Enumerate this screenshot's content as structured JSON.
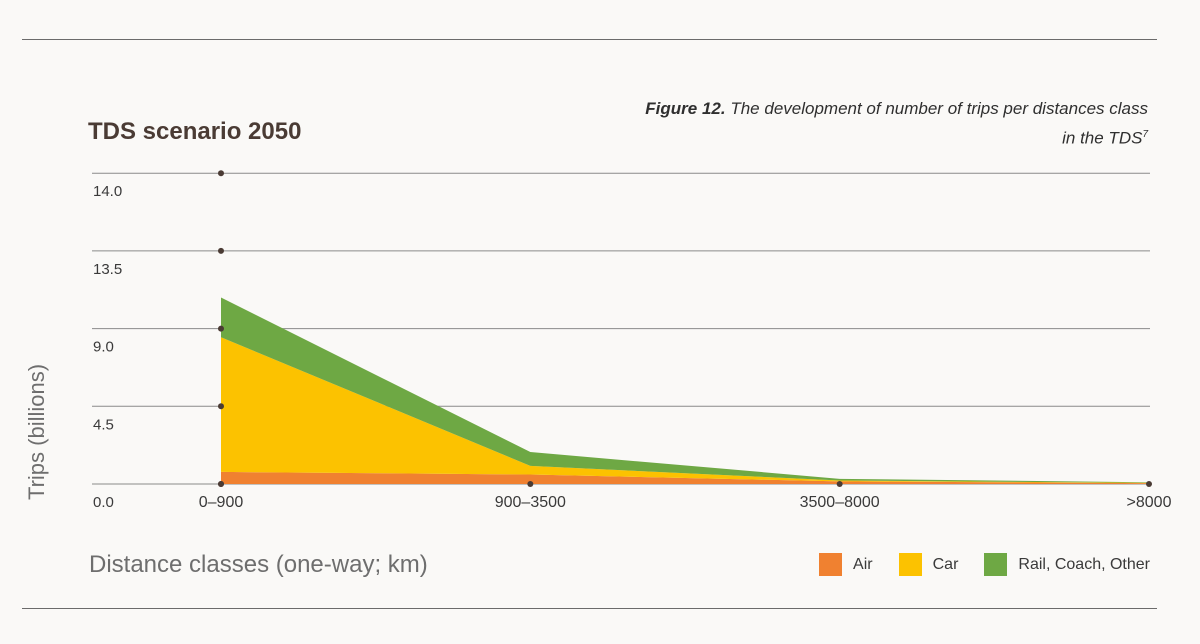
{
  "title": "TDS scenario 2050",
  "caption": {
    "label": "Figure 12.",
    "text": "The development of number of trips per distances class in the TDS",
    "footnote": "7"
  },
  "chart_data": {
    "type": "area",
    "stacked": true,
    "categories": [
      "0–900",
      "900–3500",
      "3500–8000",
      ">8000"
    ],
    "xlabel": "Distance classes (one-way; km)",
    "ylabel": "Trips (billions)",
    "y_tick_labels": [
      "0.0",
      "4.5",
      "9.0",
      "13.5",
      "14.0"
    ],
    "grid": true,
    "legend_position": "bottom-right",
    "series": [
      {
        "name": "Air",
        "color": "#f08130",
        "values": [
          0.7,
          0.55,
          0.15,
          0.05
        ]
      },
      {
        "name": "Car",
        "color": "#fcc200",
        "values": [
          7.8,
          0.5,
          0.05,
          0.02
        ]
      },
      {
        "name": "Rail, Coach, Other",
        "color": "#6ea844",
        "values": [
          2.3,
          0.8,
          0.1,
          0.03
        ]
      }
    ]
  }
}
